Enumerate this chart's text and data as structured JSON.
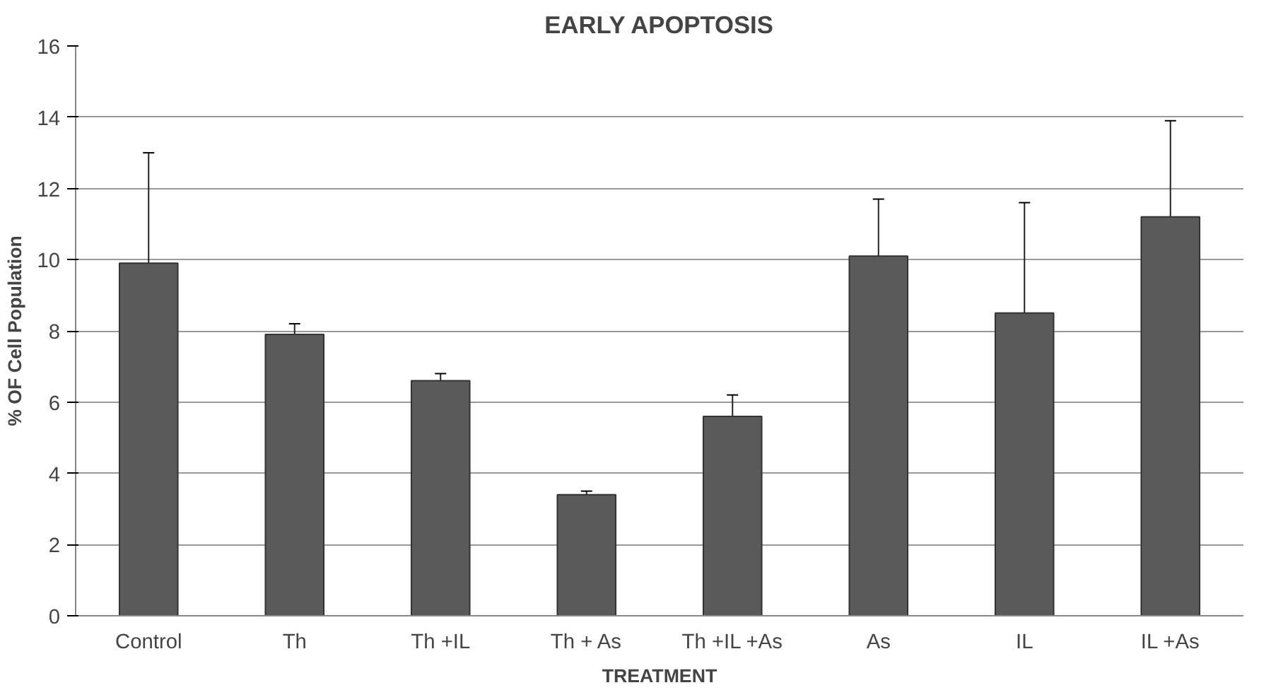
{
  "chart_data": {
    "type": "bar",
    "title": "EARLY APOPTOSIS",
    "xlabel": "TREATMENT",
    "ylabel": "% OF Cell Population",
    "categories": [
      "Control",
      "Th",
      "Th +IL",
      "Th + As",
      "Th +IL +As",
      "As",
      "IL",
      "IL +As"
    ],
    "values": [
      9.9,
      7.9,
      6.6,
      3.4,
      5.6,
      10.1,
      8.5,
      11.2
    ],
    "errors": [
      [
        9.9,
        13.0
      ],
      [
        7.9,
        8.2
      ],
      [
        6.6,
        6.8
      ],
      [
        3.4,
        3.5
      ],
      [
        5.6,
        6.2
      ],
      [
        10.1,
        11.7
      ],
      [
        8.5,
        11.6
      ],
      [
        11.2,
        13.9
      ]
    ],
    "color": "#5a5a5a",
    "ylim": [
      0,
      16
    ],
    "yticks": [
      0,
      2,
      4,
      6,
      8,
      10,
      12,
      14,
      16
    ],
    "grid": "y"
  }
}
